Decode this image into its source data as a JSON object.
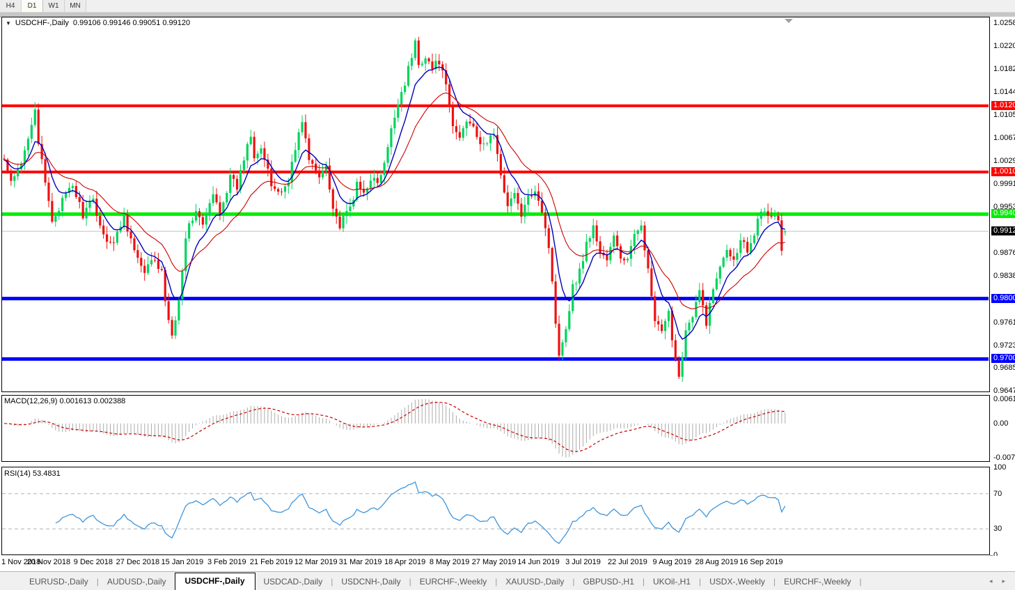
{
  "toolbar": {
    "timeframes": [
      "H4",
      "D1",
      "W1",
      "MN"
    ],
    "active": "D1"
  },
  "header": {
    "menu_icon": "▼",
    "symbol_tf": "USDCHF-,Daily",
    "ohlc": "0.99106 0.99146 0.99051 0.99120"
  },
  "colors": {
    "up": "#00d45c",
    "down": "#ee1111",
    "ma_fast": "#0000bb",
    "ma_slow": "#cc0000",
    "hline_red": "#ff0000",
    "hline_green": "#00ee00",
    "hline_blue": "#0000ff",
    "current_line": "#c0c0c0",
    "current_label_bg": "#000000",
    "macd_hist": "#ababab",
    "macd_signal": "#cc0000",
    "rsi_line": "#3e96dc",
    "rsi_level": "#b0b0b0"
  },
  "price_axis": {
    "ticks": [
      "1.02580",
      "1.02200",
      "1.01820",
      "1.01440",
      "1.01050",
      "1.00670",
      "1.00290",
      "0.99910",
      "0.99530",
      "0.98760",
      "0.98380",
      "0.97610",
      "0.97230",
      "0.96850",
      "0.96470"
    ]
  },
  "chart_data": {
    "type": "candlestick",
    "symbol": "USDCHF",
    "timeframe": "Daily",
    "title": "USDCHF-,Daily",
    "n_candles": 229,
    "x_range_dates": [
      "1 Nov 2018",
      "16 Sep 2019"
    ],
    "y_range": [
      0.9647,
      1.0258
    ],
    "last_candle": {
      "open": 0.99106,
      "high": 0.99146,
      "low": 0.99051,
      "close": 0.9912
    },
    "close_waypoints": [
      [
        0,
        1.003
      ],
      [
        2,
        0.999
      ],
      [
        5,
        1.0022
      ],
      [
        8,
        1.0095
      ],
      [
        9,
        1.0118
      ],
      [
        10,
        1.006
      ],
      [
        12,
        0.999
      ],
      [
        14,
        0.993
      ],
      [
        17,
        0.9962
      ],
      [
        20,
        0.9988
      ],
      [
        23,
        0.994
      ],
      [
        26,
        0.9962
      ],
      [
        29,
        0.9905
      ],
      [
        32,
        0.9893
      ],
      [
        35,
        0.9938
      ],
      [
        38,
        0.988
      ],
      [
        41,
        0.9838
      ],
      [
        43,
        0.9868
      ],
      [
        46,
        0.9842
      ],
      [
        48,
        0.976
      ],
      [
        49,
        0.9742
      ],
      [
        51,
        0.98
      ],
      [
        53,
        0.9905
      ],
      [
        56,
        0.9948
      ],
      [
        58,
        0.992
      ],
      [
        61,
        0.9972
      ],
      [
        63,
        0.9945
      ],
      [
        66,
        1.0
      ],
      [
        68,
        0.9985
      ],
      [
        71,
        1.0058
      ],
      [
        72,
        1.0075
      ],
      [
        73,
        1.004
      ],
      [
        75,
        1.0052
      ],
      [
        78,
        0.9988
      ],
      [
        81,
        0.9976
      ],
      [
        83,
        1.0
      ],
      [
        86,
        1.0072
      ],
      [
        87,
        1.0098
      ],
      [
        89,
        1.003
      ],
      [
        92,
        1.0002
      ],
      [
        94,
        1.0025
      ],
      [
        96,
        0.9952
      ],
      [
        98,
        0.992
      ],
      [
        101,
        0.9952
      ],
      [
        103,
        0.9988
      ],
      [
        105,
        0.9975
      ],
      [
        107,
        1.0002
      ],
      [
        109,
        0.999
      ],
      [
        111,
        1.0022
      ],
      [
        113,
        1.0078
      ],
      [
        115,
        1.0128
      ],
      [
        117,
        1.016
      ],
      [
        119,
        1.0202
      ],
      [
        120,
        1.0226
      ],
      [
        121,
        1.0188
      ],
      [
        123,
        1.0205
      ],
      [
        125,
        1.0182
      ],
      [
        127,
        1.0196
      ],
      [
        129,
        1.015
      ],
      [
        131,
        1.0085
      ],
      [
        133,
        1.0068
      ],
      [
        135,
        1.0098
      ],
      [
        137,
        1.0092
      ],
      [
        139,
        1.005
      ],
      [
        141,
        1.0062
      ],
      [
        143,
        1.0075
      ],
      [
        145,
        1.0
      ],
      [
        147,
        0.996
      ],
      [
        149,
        0.9972
      ],
      [
        151,
        0.994
      ],
      [
        153,
        0.9965
      ],
      [
        155,
        0.9985
      ],
      [
        157,
        0.9948
      ],
      [
        159,
        0.9888
      ],
      [
        161,
        0.9762
      ],
      [
        162,
        0.9712
      ],
      [
        164,
        0.9752
      ],
      [
        166,
        0.982
      ],
      [
        168,
        0.9845
      ],
      [
        170,
        0.9892
      ],
      [
        172,
        0.9918
      ],
      [
        174,
        0.9878
      ],
      [
        176,
        0.9865
      ],
      [
        178,
        0.9902
      ],
      [
        180,
        0.9868
      ],
      [
        182,
        0.9865
      ],
      [
        184,
        0.9902
      ],
      [
        186,
        0.9928
      ],
      [
        188,
        0.9845
      ],
      [
        190,
        0.9762
      ],
      [
        192,
        0.9742
      ],
      [
        194,
        0.9775
      ],
      [
        196,
        0.97
      ],
      [
        197,
        0.9672
      ],
      [
        199,
        0.9748
      ],
      [
        201,
        0.9768
      ],
      [
        203,
        0.9812
      ],
      [
        205,
        0.9762
      ],
      [
        207,
        0.9815
      ],
      [
        209,
        0.9858
      ],
      [
        211,
        0.9888
      ],
      [
        213,
        0.9862
      ],
      [
        215,
        0.9902
      ],
      [
        217,
        0.9882
      ],
      [
        219,
        0.9912
      ],
      [
        220,
        0.9938
      ],
      [
        222,
        0.9942
      ],
      [
        224,
        0.9938
      ],
      [
        226,
        0.9932
      ],
      [
        227,
        0.9878
      ],
      [
        228,
        0.9912
      ]
    ],
    "moving_averages": [
      {
        "name": "fast",
        "period": 8,
        "color_key": "ma_fast"
      },
      {
        "name": "slow",
        "period": 21,
        "color_key": "ma_slow"
      }
    ],
    "horizontal_lines": [
      {
        "price": 1.01205,
        "label": "1.01205",
        "color_key": "hline_red",
        "width": 4
      },
      {
        "price": 1.00106,
        "label": "1.00106",
        "color_key": "hline_red",
        "width": 4
      },
      {
        "price": 0.99406,
        "label": "0.99406",
        "color_key": "hline_green",
        "width": 5
      },
      {
        "price": 0.98004,
        "label": "0.98004",
        "color_key": "hline_blue",
        "width": 5
      },
      {
        "price": 0.97001,
        "label": "0.97001",
        "color_key": "hline_blue",
        "width": 5
      }
    ],
    "current_price": {
      "value": 0.9912,
      "label": "0.99120"
    },
    "indicators": [
      {
        "name": "MACD",
        "label": "MACD(12,26,9)",
        "values_text": "0.001613 0.002388",
        "params": [
          12,
          26,
          9
        ],
        "axis_max": "0.00613",
        "axis_zero": "0.00",
        "axis_min": "-0.00761"
      },
      {
        "name": "RSI",
        "label": "RSI(14) 53.4831",
        "period": 14,
        "value": 53.4831,
        "levels": [
          "100",
          "70",
          "30",
          "0"
        ],
        "level_lines": [
          70,
          30
        ]
      }
    ],
    "date_ticks": [
      "1 Nov 2018",
      "20 Nov 2018",
      "9 Dec 2018",
      "27 Dec 2018",
      "15 Jan 2019",
      "3 Feb 2019",
      "21 Feb 2019",
      "12 Mar 2019",
      "31 Mar 2019",
      "18 Apr 2019",
      "8 May 2019",
      "27 May 2019",
      "14 Jun 2019",
      "3 Jul 2019",
      "22 Jul 2019",
      "9 Aug 2019",
      "28 Aug 2019",
      "16 Sep 2019"
    ]
  },
  "symbol_tabs": {
    "items": [
      "EURUSD-,Daily",
      "AUDUSD-,Daily",
      "USDCHF-,Daily",
      "USDCAD-,Daily",
      "USDCNH-,Daily",
      "EURCHF-,Weekly",
      "XAUUSD-,Daily",
      "GBPUSD-,H1",
      "UKOil-,H1",
      "USDX-,Weekly",
      "EURCHF-,Weekly"
    ],
    "active_index": 2,
    "scroll_left": "◂",
    "scroll_right": "▸"
  }
}
